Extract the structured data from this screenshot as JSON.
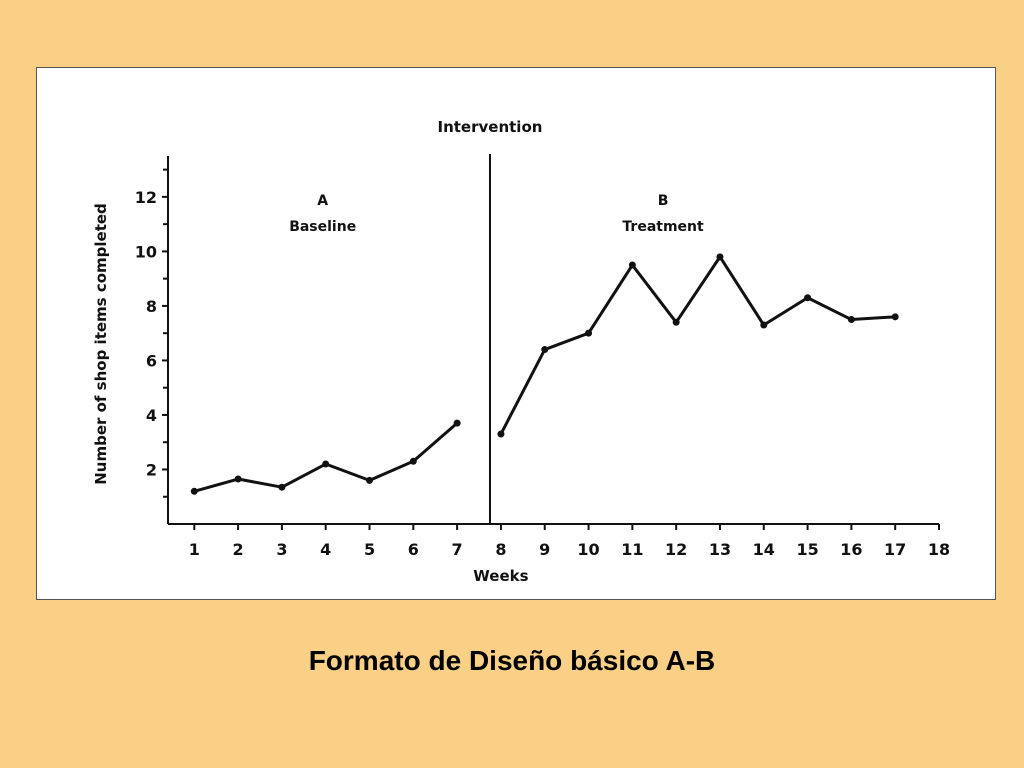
{
  "caption": "Formato de Diseño básico A-B",
  "colors": {
    "background": "#f9d086",
    "panel": "#ffffff",
    "ink": "#111111"
  },
  "chart_data": {
    "type": "line",
    "title": "Intervention",
    "xlabel": "Weeks",
    "ylabel": "Number of shop items completed",
    "xlim": [
      0.4,
      18
    ],
    "ylim": [
      0,
      13.5
    ],
    "x_ticks": [
      1,
      2,
      3,
      4,
      5,
      6,
      7,
      8,
      9,
      10,
      11,
      12,
      13,
      14,
      15,
      16,
      17,
      18
    ],
    "y_ticks": [
      2,
      4,
      6,
      8,
      10,
      12
    ],
    "y_minor_ticks": [
      1,
      3,
      5,
      7,
      9,
      11,
      13
    ],
    "phase_change_x": 7.75,
    "phases": [
      {
        "letter": "A",
        "name": "Baseline"
      },
      {
        "letter": "B",
        "name": "Treatment"
      }
    ],
    "series": [
      {
        "phase": "A",
        "x": [
          1,
          2,
          3,
          4,
          5,
          6,
          7
        ],
        "y": [
          1.2,
          1.65,
          1.35,
          2.2,
          1.6,
          2.3,
          3.7
        ]
      },
      {
        "phase": "B",
        "x": [
          8,
          9,
          10,
          11,
          12,
          13,
          14,
          15,
          16,
          17
        ],
        "y": [
          3.3,
          6.4,
          7.0,
          9.5,
          7.4,
          9.8,
          7.3,
          8.3,
          7.5,
          7.6
        ]
      }
    ],
    "grid": false,
    "legend": "none"
  }
}
